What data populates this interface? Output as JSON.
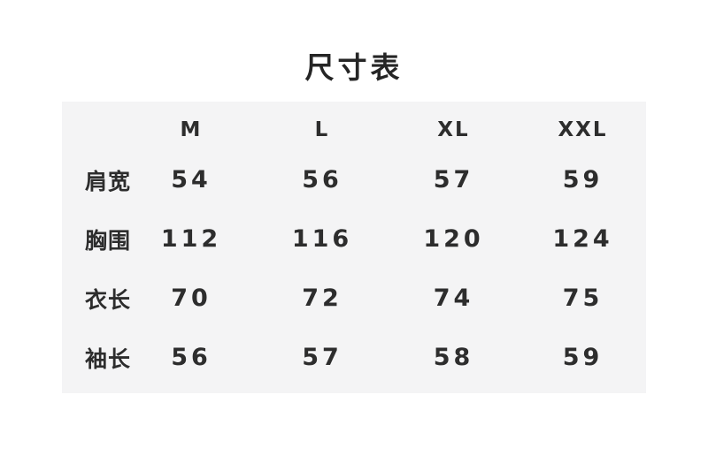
{
  "chart_data": {
    "type": "table",
    "title": "尺寸表",
    "columns": [
      "M",
      "L",
      "XL",
      "XXL"
    ],
    "rows": [
      {
        "label": "肩宽",
        "values": [
          54,
          56,
          57,
          59
        ]
      },
      {
        "label": "胸围",
        "values": [
          112,
          116,
          120,
          124
        ]
      },
      {
        "label": "衣长",
        "values": [
          70,
          72,
          74,
          75
        ]
      },
      {
        "label": "袖长",
        "values": [
          56,
          57,
          58,
          59
        ]
      }
    ]
  },
  "colors": {
    "page_bg": "#ffffff",
    "panel_bg": "#f4f4f5",
    "text": "#2d2d2d",
    "title_text": "#252525"
  }
}
